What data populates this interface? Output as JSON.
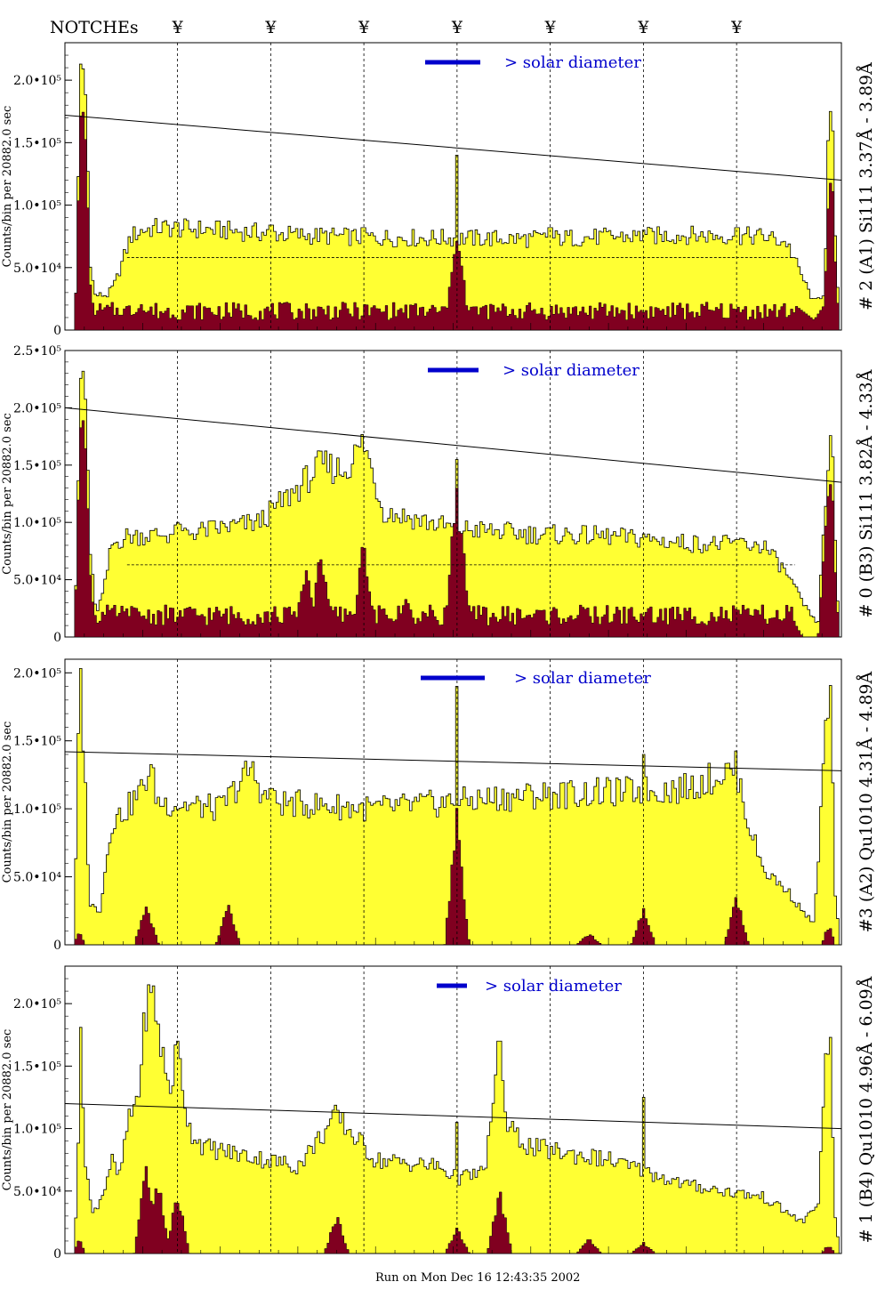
{
  "header": {
    "notches_label": "NOTCHEs",
    "notch_symbol": "¥",
    "notch_glyphs": [
      "¥",
      "¥",
      "¥",
      "¥",
      "¥",
      "¥",
      "¥"
    ]
  },
  "footer": {
    "run_label": "Run on Mon Dec 16 12:43:35 2002"
  },
  "colors": {
    "fill_total": "#ffff33",
    "fill_peak": "#800020",
    "annotation_blue": "#0000cc",
    "annotation_purple": "#660066",
    "axis": "#000000"
  },
  "chart_data": [
    {
      "type": "bar",
      "title": "# 2 (A1) Si111  3.37Å - 3.89Å",
      "ylabel": "Counts/bin per  20882.0 sec",
      "ylim": [
        0,
        230000
      ],
      "yticks": [
        {
          "v": 0,
          "label": "0"
        },
        {
          "v": 50000,
          "label": "5.0•10⁴"
        },
        {
          "v": 100000,
          "label": "1.0•10⁵"
        },
        {
          "v": 150000,
          "label": "1.5•10⁵"
        },
        {
          "v": 200000,
          "label": "2.0•10⁵"
        }
      ],
      "annotation": "> solar diameter",
      "xlim": [
        0,
        100
      ],
      "notch_x": [
        14.5,
        26.5,
        38.5,
        50.5,
        62.5,
        74.5,
        86.5
      ],
      "trend_line": [
        [
          0,
          172000
        ],
        [
          100,
          120000
        ]
      ],
      "dashed_level": 58000,
      "profile": {
        "left_peak": [
          [
            1.2,
            0
          ],
          [
            1.6,
            60000
          ],
          [
            1.9,
            200000
          ],
          [
            2.4,
            210000
          ],
          [
            2.8,
            175000
          ],
          [
            3.2,
            60000
          ],
          [
            3.8,
            28000
          ],
          [
            5.5,
            28000
          ],
          [
            6.5,
            38000
          ],
          [
            8.5,
            75000
          ],
          [
            10,
            80000
          ],
          [
            12,
            82000
          ],
          [
            20,
            80000
          ],
          [
            30,
            76000
          ],
          [
            40,
            74000
          ],
          [
            60,
            73000
          ],
          [
            80,
            76000
          ],
          [
            90,
            75000
          ],
          [
            93,
            70000
          ],
          [
            95,
            42000
          ],
          [
            96.5,
            22000
          ],
          [
            97.8,
            30000
          ],
          [
            98.3,
            150000
          ],
          [
            98.8,
            170000
          ],
          [
            99.3,
            60000
          ],
          [
            99.8,
            0
          ]
        ],
        "spikes": [
          [
            14.5,
            86000
          ],
          [
            26.5,
            84000
          ],
          [
            38.5,
            82000
          ],
          [
            50.5,
            140000
          ],
          [
            62.5,
            82000
          ],
          [
            74.5,
            80000
          ],
          [
            86.5,
            82000
          ]
        ]
      },
      "peak_profile": {
        "base": 16000,
        "left": [
          [
            1.2,
            0
          ],
          [
            1.6,
            60000
          ],
          [
            1.9,
            170000
          ],
          [
            2.4,
            175000
          ],
          [
            2.8,
            140000
          ],
          [
            3.2,
            40000
          ],
          [
            3.8,
            12000
          ],
          [
            9,
            12000
          ],
          [
            10,
            22000
          ]
        ],
        "right": [
          [
            94,
            20000
          ],
          [
            96.5,
            8000
          ],
          [
            97.8,
            20000
          ],
          [
            98.3,
            100000
          ],
          [
            98.8,
            130000
          ],
          [
            99.3,
            40000
          ],
          [
            99.8,
            0
          ]
        ],
        "bumps": [
          [
            50.5,
            80000
          ]
        ]
      }
    },
    {
      "type": "bar",
      "title": "# 0 (B3) Si111  3.82Å - 4.33Å",
      "ylabel": "Counts/bin per  20882.0 sec",
      "ylim": [
        0,
        250000
      ],
      "yticks": [
        {
          "v": 0,
          "label": "0"
        },
        {
          "v": 50000,
          "label": "5.0•10⁴"
        },
        {
          "v": 100000,
          "label": "1.0•10⁵"
        },
        {
          "v": 150000,
          "label": "1.5•10⁵"
        },
        {
          "v": 200000,
          "label": "2.0•10⁵"
        },
        {
          "v": 250000,
          "label": "2.5•10⁵"
        }
      ],
      "annotation": "> solar diameter",
      "xlim": [
        0,
        100
      ],
      "notch_x": [
        14.5,
        26.5,
        38.5,
        50.5,
        62.5,
        74.5,
        86.5
      ],
      "trend_line": [
        [
          0,
          200000
        ],
        [
          100,
          135000
        ]
      ],
      "dashed_level": 63000,
      "profile": {
        "left_peak": [
          [
            1.2,
            0
          ],
          [
            1.6,
            80000
          ],
          [
            1.9,
            220000
          ],
          [
            2.4,
            230000
          ],
          [
            2.8,
            190000
          ],
          [
            3.2,
            80000
          ],
          [
            4,
            20000
          ],
          [
            5,
            40000
          ],
          [
            6,
            80000
          ],
          [
            8,
            88000
          ],
          [
            15,
            90000
          ],
          [
            25,
            100000
          ],
          [
            30,
            130000
          ],
          [
            33,
            150000
          ],
          [
            36,
            145000
          ],
          [
            38.5,
            170000
          ],
          [
            41,
            110000
          ],
          [
            50,
            95000
          ],
          [
            60,
            90000
          ],
          [
            70,
            88000
          ],
          [
            80,
            82000
          ],
          [
            90,
            80000
          ],
          [
            93,
            55000
          ],
          [
            95,
            30000
          ],
          [
            97,
            10000
          ],
          [
            98.2,
            150000
          ],
          [
            98.8,
            170000
          ],
          [
            99.3,
            60000
          ],
          [
            99.8,
            0
          ]
        ],
        "spikes": [
          [
            14.5,
            100000
          ],
          [
            26.5,
            115000
          ],
          [
            38.5,
            160000
          ],
          [
            50.5,
            155000
          ],
          [
            62.5,
            95000
          ],
          [
            74.5,
            90000
          ],
          [
            86.5,
            85000
          ]
        ]
      },
      "peak_profile": {
        "base": 20000,
        "left": [
          [
            1.2,
            0
          ],
          [
            1.6,
            80000
          ],
          [
            1.9,
            180000
          ],
          [
            2.4,
            190000
          ],
          [
            2.8,
            150000
          ],
          [
            3.2,
            60000
          ],
          [
            4,
            0
          ],
          [
            5,
            0
          ],
          [
            6,
            18000
          ]
        ],
        "right": [
          [
            94,
            12000
          ],
          [
            95,
            0
          ],
          [
            97,
            0
          ],
          [
            98.2,
            120000
          ],
          [
            98.8,
            140000
          ],
          [
            99.3,
            40000
          ],
          [
            99.8,
            0
          ]
        ],
        "bumps": [
          [
            31,
            60000
          ],
          [
            33,
            75000
          ],
          [
            38.5,
            80000
          ],
          [
            50.5,
            150000
          ],
          [
            44,
            35000
          ]
        ]
      }
    },
    {
      "type": "bar",
      "title": "#3 (A2) Qu1010  4.31Å - 4.89Å",
      "ylabel": "Counts/bin per  20882.0 sec",
      "ylim": [
        0,
        210000
      ],
      "yticks": [
        {
          "v": 0,
          "label": "0"
        },
        {
          "v": 50000,
          "label": "5.0•10⁴"
        },
        {
          "v": 100000,
          "label": "1.0•10⁵"
        },
        {
          "v": 150000,
          "label": "1.5•10⁵"
        },
        {
          "v": 200000,
          "label": "2.0•10⁵"
        }
      ],
      "annotation": "> solar diameter",
      "xlim": [
        0,
        100
      ],
      "notch_x": [
        14.5,
        26.5,
        38.5,
        50.5,
        62.5,
        74.5,
        86.5
      ],
      "trend_line": [
        [
          0,
          142000
        ],
        [
          100,
          128000
        ]
      ],
      "dashed_level": null,
      "profile": {
        "left_peak": [
          [
            1.2,
            0
          ],
          [
            1.6,
            120000
          ],
          [
            2,
            200000
          ],
          [
            2.6,
            120000
          ],
          [
            3.2,
            30000
          ],
          [
            4.5,
            25000
          ],
          [
            6,
            90000
          ],
          [
            8,
            100000
          ],
          [
            10,
            115000
          ],
          [
            11,
            130000
          ],
          [
            12,
            105000
          ],
          [
            20,
            100000
          ],
          [
            22,
            115000
          ],
          [
            24,
            130000
          ],
          [
            26,
            105000
          ],
          [
            40,
            100000
          ],
          [
            50,
            105000
          ],
          [
            60,
            110000
          ],
          [
            70,
            112000
          ],
          [
            80,
            115000
          ],
          [
            86.5,
            130000
          ],
          [
            88,
            90000
          ],
          [
            90,
            55000
          ],
          [
            93,
            40000
          ],
          [
            95,
            25000
          ],
          [
            96.5,
            15000
          ],
          [
            98,
            160000
          ],
          [
            98.6,
            180000
          ],
          [
            99.2,
            40000
          ],
          [
            99.8,
            0
          ]
        ],
        "spikes": [
          [
            50.5,
            190000
          ],
          [
            74.5,
            140000
          ],
          [
            26.5,
            115000
          ]
        ]
      },
      "peak_profile": {
        "base": 0,
        "left": [
          [
            1.2,
            0
          ],
          [
            1.6,
            8000
          ],
          [
            2,
            8000
          ],
          [
            2.6,
            0
          ]
        ],
        "right": [
          [
            97.5,
            0
          ],
          [
            98,
            10000
          ],
          [
            98.6,
            12000
          ],
          [
            99.2,
            0
          ]
        ],
        "bumps": [
          [
            10.5,
            27000
          ],
          [
            21,
            27000
          ],
          [
            50.5,
            90000
          ],
          [
            74.5,
            25000
          ],
          [
            86.5,
            35000
          ],
          [
            67.5,
            8000
          ]
        ]
      }
    },
    {
      "type": "bar",
      "title": "# 1 (B4) Qu1010 4.96Å - 6.09Å",
      "ylabel": "Counts/bin per  20882.0 sec",
      "ylim": [
        0,
        230000
      ],
      "yticks": [
        {
          "v": 0,
          "label": "0"
        },
        {
          "v": 50000,
          "label": "5.0•10⁴"
        },
        {
          "v": 100000,
          "label": "1.0•10⁵"
        },
        {
          "v": 150000,
          "label": "1.5•10⁵"
        },
        {
          "v": 200000,
          "label": "2.0•10⁵"
        }
      ],
      "annotation": "> solar diameter",
      "xlim": [
        0,
        100
      ],
      "notch_x": [
        14.5,
        26.5,
        38.5,
        50.5,
        62.5,
        74.5,
        86.5
      ],
      "trend_line": [
        [
          0,
          120000
        ],
        [
          100,
          100000
        ]
      ],
      "dashed_level": null,
      "profile": {
        "left_peak": [
          [
            1.2,
            0
          ],
          [
            1.6,
            60000
          ],
          [
            2,
            170000
          ],
          [
            2.6,
            80000
          ],
          [
            3.5,
            30000
          ],
          [
            5,
            50000
          ],
          [
            6,
            75000
          ],
          [
            7,
            60000
          ],
          [
            8,
            100000
          ],
          [
            9.5,
            130000
          ],
          [
            10.5,
            200000
          ],
          [
            11.5,
            205000
          ],
          [
            12.5,
            160000
          ],
          [
            13.5,
            130000
          ],
          [
            14.5,
            165000
          ],
          [
            16,
            100000
          ],
          [
            18,
            85000
          ],
          [
            22,
            80000
          ],
          [
            30,
            70000
          ],
          [
            35,
            110000
          ],
          [
            40,
            75000
          ],
          [
            48,
            70000
          ],
          [
            50.5,
            60000
          ],
          [
            54,
            65000
          ],
          [
            56,
            155000
          ],
          [
            57,
            100000
          ],
          [
            60,
            85000
          ],
          [
            70,
            75000
          ],
          [
            80,
            55000
          ],
          [
            90,
            45000
          ],
          [
            95,
            25000
          ],
          [
            97,
            40000
          ],
          [
            98,
            150000
          ],
          [
            98.6,
            160000
          ],
          [
            99.2,
            30000
          ],
          [
            99.8,
            0
          ]
        ],
        "spikes": [
          [
            14.5,
            170000
          ],
          [
            35,
            110000
          ],
          [
            50.5,
            105000
          ],
          [
            56,
            170000
          ],
          [
            74.5,
            125000
          ]
        ]
      },
      "peak_profile": {
        "base": 0,
        "left": [
          [
            1.2,
            0
          ],
          [
            1.6,
            10000
          ],
          [
            2,
            10000
          ],
          [
            2.6,
            0
          ]
        ],
        "right": [
          [
            97.5,
            0
          ],
          [
            98,
            5000
          ],
          [
            98.6,
            5000
          ],
          [
            99.2,
            0
          ]
        ],
        "bumps": [
          [
            10.5,
            72000
          ],
          [
            12,
            55000
          ],
          [
            14.5,
            45000
          ],
          [
            35,
            30000
          ],
          [
            56,
            48000
          ],
          [
            50.5,
            20000
          ],
          [
            67.5,
            12000
          ],
          [
            74.5,
            8000
          ]
        ]
      }
    }
  ]
}
